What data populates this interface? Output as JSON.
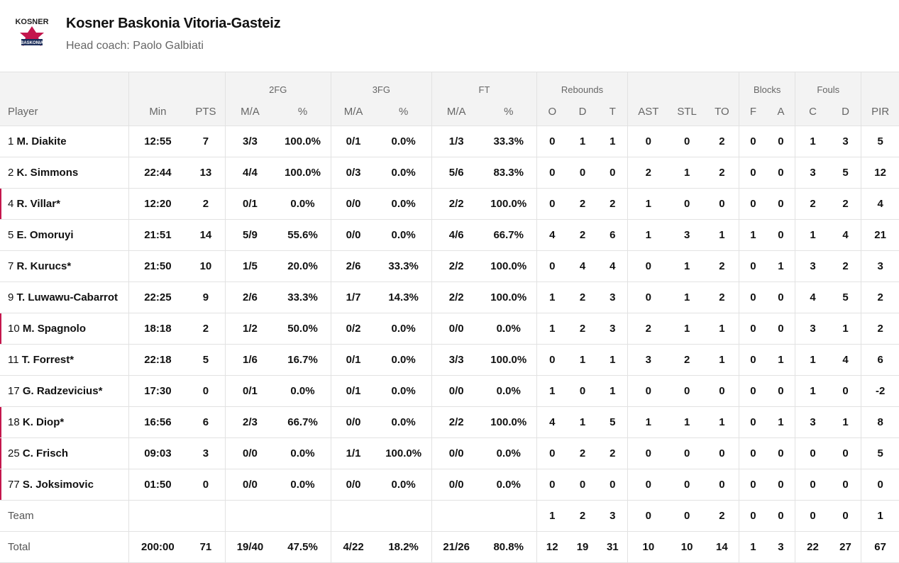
{
  "team": {
    "logo_text": "KOSNER",
    "logo_sub": "BASKONIA",
    "name": "Kosner Baskonia Vitoria-Gasteiz",
    "coach": "Head coach: Paolo Galbiati"
  },
  "headers": {
    "groups": {
      "fg2": "2FG",
      "fg3": "3FG",
      "ft": "FT",
      "rebounds": "Rebounds",
      "blocks": "Blocks",
      "fouls": "Fouls"
    },
    "cols": [
      "Player",
      "Min",
      "PTS",
      "M/A",
      "%",
      "M/A",
      "%",
      "M/A",
      "%",
      "O",
      "D",
      "T",
      "AST",
      "STL",
      "TO",
      "F",
      "A",
      "C",
      "D",
      "PIR"
    ]
  },
  "rows": [
    {
      "num": "1",
      "name": "M. Diakite",
      "starter": false,
      "stats": [
        "12:55",
        "7",
        "3/3",
        "100.0%",
        "0/1",
        "0.0%",
        "1/3",
        "33.3%",
        "0",
        "1",
        "1",
        "0",
        "0",
        "2",
        "0",
        "0",
        "1",
        "3",
        "5"
      ]
    },
    {
      "num": "2",
      "name": "K. Simmons",
      "starter": false,
      "stats": [
        "22:44",
        "13",
        "4/4",
        "100.0%",
        "0/3",
        "0.0%",
        "5/6",
        "83.3%",
        "0",
        "0",
        "0",
        "2",
        "1",
        "2",
        "0",
        "0",
        "3",
        "5",
        "12"
      ]
    },
    {
      "num": "4",
      "name": "R. Villar*",
      "starter": true,
      "stats": [
        "12:20",
        "2",
        "0/1",
        "0.0%",
        "0/0",
        "0.0%",
        "2/2",
        "100.0%",
        "0",
        "2",
        "2",
        "1",
        "0",
        "0",
        "0",
        "0",
        "2",
        "2",
        "4"
      ]
    },
    {
      "num": "5",
      "name": "E. Omoruyi",
      "starter": false,
      "stats": [
        "21:51",
        "14",
        "5/9",
        "55.6%",
        "0/0",
        "0.0%",
        "4/6",
        "66.7%",
        "4",
        "2",
        "6",
        "1",
        "3",
        "1",
        "1",
        "0",
        "1",
        "4",
        "21"
      ]
    },
    {
      "num": "7",
      "name": "R. Kurucs*",
      "starter": false,
      "stats": [
        "21:50",
        "10",
        "1/5",
        "20.0%",
        "2/6",
        "33.3%",
        "2/2",
        "100.0%",
        "0",
        "4",
        "4",
        "0",
        "1",
        "2",
        "0",
        "1",
        "3",
        "2",
        "3"
      ]
    },
    {
      "num": "9",
      "name": "T. Luwawu-Cabarrot",
      "starter": false,
      "stats": [
        "22:25",
        "9",
        "2/6",
        "33.3%",
        "1/7",
        "14.3%",
        "2/2",
        "100.0%",
        "1",
        "2",
        "3",
        "0",
        "1",
        "2",
        "0",
        "0",
        "4",
        "5",
        "2"
      ]
    },
    {
      "num": "10",
      "name": "M. Spagnolo",
      "starter": true,
      "stats": [
        "18:18",
        "2",
        "1/2",
        "50.0%",
        "0/2",
        "0.0%",
        "0/0",
        "0.0%",
        "1",
        "2",
        "3",
        "2",
        "1",
        "1",
        "0",
        "0",
        "3",
        "1",
        "2"
      ]
    },
    {
      "num": "11",
      "name": "T. Forrest*",
      "starter": false,
      "stats": [
        "22:18",
        "5",
        "1/6",
        "16.7%",
        "0/1",
        "0.0%",
        "3/3",
        "100.0%",
        "0",
        "1",
        "1",
        "3",
        "2",
        "1",
        "0",
        "1",
        "1",
        "4",
        "6"
      ]
    },
    {
      "num": "17",
      "name": "G. Radzevicius*",
      "starter": false,
      "stats": [
        "17:30",
        "0",
        "0/1",
        "0.0%",
        "0/1",
        "0.0%",
        "0/0",
        "0.0%",
        "1",
        "0",
        "1",
        "0",
        "0",
        "0",
        "0",
        "0",
        "1",
        "0",
        "-2"
      ]
    },
    {
      "num": "18",
      "name": "K. Diop*",
      "starter": true,
      "stats": [
        "16:56",
        "6",
        "2/3",
        "66.7%",
        "0/0",
        "0.0%",
        "2/2",
        "100.0%",
        "4",
        "1",
        "5",
        "1",
        "1",
        "1",
        "0",
        "1",
        "3",
        "1",
        "8"
      ]
    },
    {
      "num": "25",
      "name": "C. Frisch",
      "starter": true,
      "stats": [
        "09:03",
        "3",
        "0/0",
        "0.0%",
        "1/1",
        "100.0%",
        "0/0",
        "0.0%",
        "0",
        "2",
        "2",
        "0",
        "0",
        "0",
        "0",
        "0",
        "0",
        "0",
        "5"
      ]
    },
    {
      "num": "77",
      "name": "S. Joksimovic",
      "starter": true,
      "stats": [
        "01:50",
        "0",
        "0/0",
        "0.0%",
        "0/0",
        "0.0%",
        "0/0",
        "0.0%",
        "0",
        "0",
        "0",
        "0",
        "0",
        "0",
        "0",
        "0",
        "0",
        "0",
        "0"
      ]
    }
  ],
  "team_row": {
    "label": "Team",
    "stats": [
      "",
      "",
      "",
      "",
      "",
      "",
      "",
      "",
      "1",
      "2",
      "3",
      "0",
      "0",
      "2",
      "0",
      "0",
      "0",
      "0",
      "1"
    ]
  },
  "total_row": {
    "label": "Total",
    "stats": [
      "200:00",
      "71",
      "19/40",
      "47.5%",
      "4/22",
      "18.2%",
      "21/26",
      "80.8%",
      "12",
      "19",
      "31",
      "10",
      "10",
      "14",
      "1",
      "3",
      "22",
      "27",
      "67"
    ]
  },
  "colors": {
    "accent": "#c4164d",
    "header_bg": "#f3f3f3",
    "border": "#e2e2e2"
  }
}
